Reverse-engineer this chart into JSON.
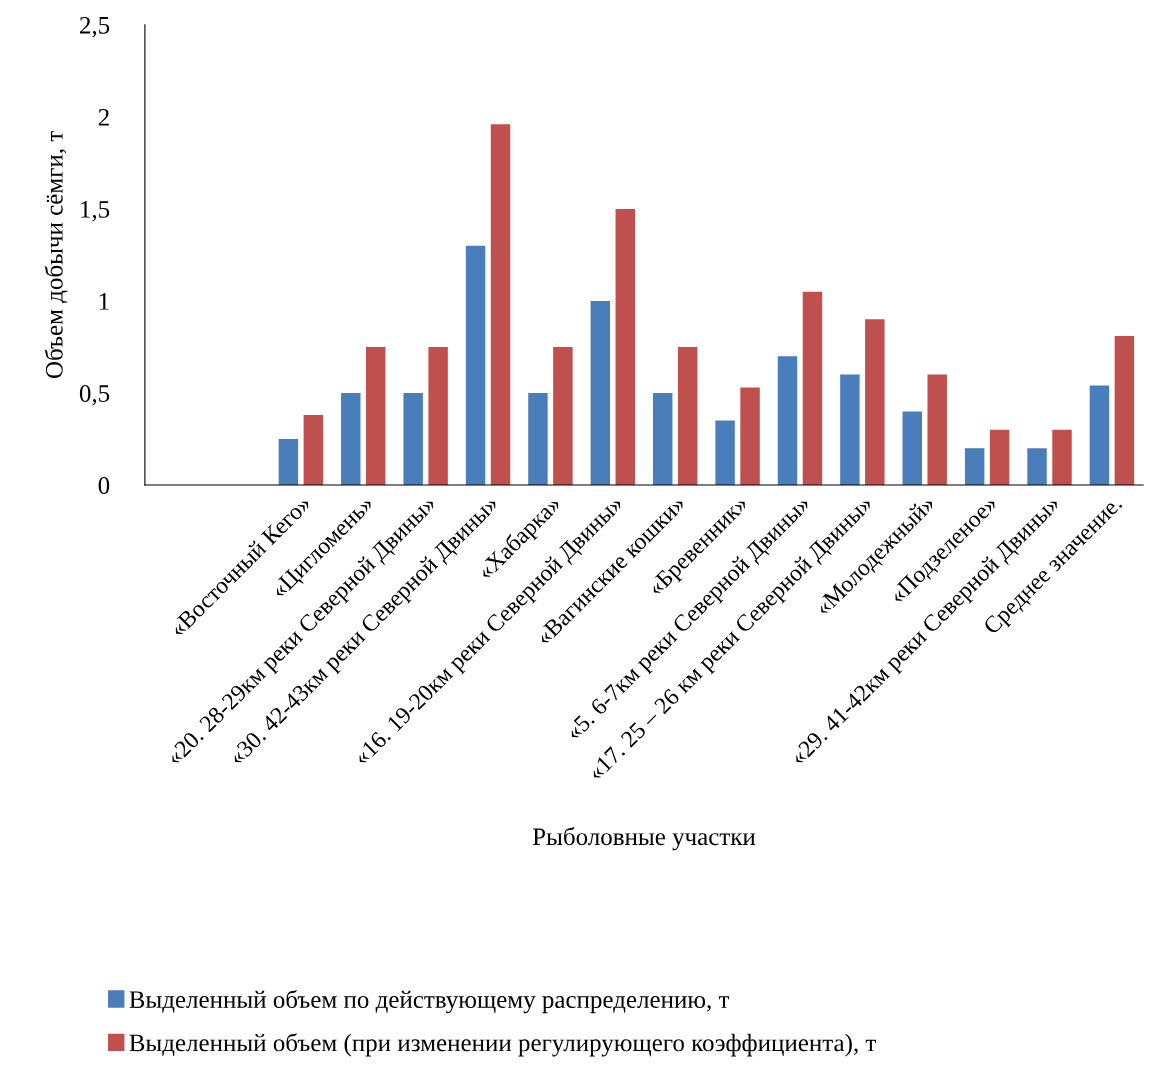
{
  "chart_data": {
    "type": "bar",
    "xlabel": "Рыболовные участки",
    "ylabel": "Объем добычи сёмги, т",
    "categories": [
      null,
      null,
      "«Восточный Кего»",
      "«Цигломень»",
      "«20. 28-29км реки Северной Двины»",
      "«30. 42-43км реки Северной Двины»",
      "«Хабарка»",
      "«16. 19-20км реки Северной Двины»",
      "«Вагинские кошки»",
      "«Бревенник»",
      "«5. 6-7км реки Северной Двины»",
      "«17. 25 – 26 км реки Северной Двины»",
      "«Молодежный»",
      "«Подзеленое»",
      "«29. 41-42км реки Северной Двины»",
      "Среднее значение."
    ],
    "series": [
      {
        "name": "Выделенный объем по действующему распределению, т",
        "color": "#4a7ebb",
        "values": [
          null,
          null,
          0.25,
          0.5,
          0.5,
          1.3,
          0.5,
          1.0,
          0.5,
          0.35,
          0.7,
          0.6,
          0.4,
          0.2,
          0.2,
          0.54
        ]
      },
      {
        "name": "Выделенный объем (при изменении регулирующего коэффициента), т",
        "color": "#c0504d",
        "values": [
          null,
          null,
          0.38,
          0.75,
          0.75,
          1.96,
          0.75,
          1.5,
          0.75,
          0.53,
          1.05,
          0.9,
          0.6,
          0.3,
          0.3,
          0.81
        ]
      }
    ],
    "ylim": [
      0,
      2.5
    ],
    "yticks": [
      0,
      {
        "value": 0.5,
        "label": "0,5"
      },
      1,
      {
        "value": 1.5,
        "label": "1,5"
      },
      2,
      {
        "value": 2.5,
        "label": "2,5"
      }
    ],
    "grid": false,
    "legend": "bottom"
  }
}
